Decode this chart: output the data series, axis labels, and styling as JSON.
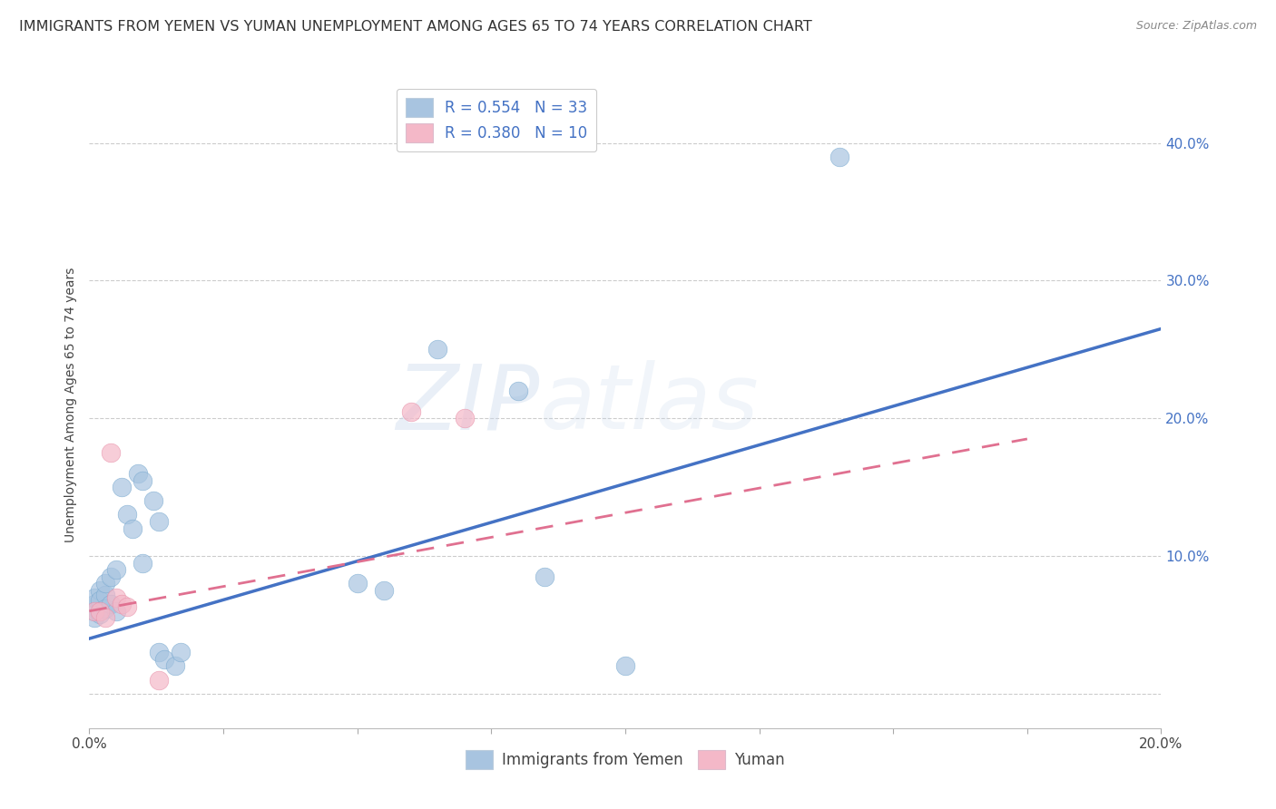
{
  "title": "IMMIGRANTS FROM YEMEN VS YUMAN UNEMPLOYMENT AMONG AGES 65 TO 74 YEARS CORRELATION CHART",
  "source": "Source: ZipAtlas.com",
  "ylabel": "Unemployment Among Ages 65 to 74 years",
  "ytick_labels": [
    "",
    "10.0%",
    "20.0%",
    "30.0%",
    "40.0%"
  ],
  "ytick_values": [
    0.0,
    0.1,
    0.2,
    0.3,
    0.4
  ],
  "xlim": [
    0.0,
    0.2
  ],
  "ylim": [
    -0.025,
    0.445
  ],
  "R_blue": 0.554,
  "N_blue": 33,
  "R_pink": 0.38,
  "N_pink": 10,
  "blue_color": "#A8C4E0",
  "blue_edge": "#7AAAD0",
  "pink_color": "#F4B8C8",
  "pink_edge": "#E890A8",
  "trend_blue": "#4472C4",
  "trend_pink": "#E07090",
  "blue_label": "Immigrants from Yemen",
  "pink_label": "Yuman",
  "blue_scatter": [
    [
      0.001,
      0.06
    ],
    [
      0.001,
      0.065
    ],
    [
      0.001,
      0.07
    ],
    [
      0.001,
      0.055
    ],
    [
      0.002,
      0.075
    ],
    [
      0.002,
      0.068
    ],
    [
      0.002,
      0.058
    ],
    [
      0.003,
      0.072
    ],
    [
      0.003,
      0.062
    ],
    [
      0.003,
      0.08
    ],
    [
      0.004,
      0.085
    ],
    [
      0.004,
      0.065
    ],
    [
      0.005,
      0.09
    ],
    [
      0.005,
      0.06
    ],
    [
      0.006,
      0.15
    ],
    [
      0.007,
      0.13
    ],
    [
      0.008,
      0.12
    ],
    [
      0.009,
      0.16
    ],
    [
      0.01,
      0.155
    ],
    [
      0.01,
      0.095
    ],
    [
      0.012,
      0.14
    ],
    [
      0.013,
      0.125
    ],
    [
      0.013,
      0.03
    ],
    [
      0.014,
      0.025
    ],
    [
      0.016,
      0.02
    ],
    [
      0.017,
      0.03
    ],
    [
      0.05,
      0.08
    ],
    [
      0.055,
      0.075
    ],
    [
      0.065,
      0.25
    ],
    [
      0.08,
      0.22
    ],
    [
      0.085,
      0.085
    ],
    [
      0.1,
      0.02
    ],
    [
      0.14,
      0.39
    ]
  ],
  "pink_scatter": [
    [
      0.001,
      0.06
    ],
    [
      0.002,
      0.06
    ],
    [
      0.003,
      0.055
    ],
    [
      0.004,
      0.175
    ],
    [
      0.005,
      0.07
    ],
    [
      0.006,
      0.065
    ],
    [
      0.007,
      0.063
    ],
    [
      0.013,
      0.01
    ],
    [
      0.06,
      0.205
    ],
    [
      0.07,
      0.2
    ]
  ],
  "blue_trendline_x": [
    0.0,
    0.2
  ],
  "blue_trendline_y": [
    0.04,
    0.265
  ],
  "pink_trendline_x": [
    0.0,
    0.175
  ],
  "pink_trendline_y": [
    0.06,
    0.185
  ],
  "background_color": "#FFFFFF",
  "grid_color": "#CCCCCC",
  "title_fontsize": 11.5,
  "axis_label_fontsize": 10,
  "tick_fontsize": 11,
  "legend_fontsize": 12,
  "watermark_text": "ZIPatlas",
  "watermark_zip": "ZIP",
  "watermark_atlas": "atlas"
}
